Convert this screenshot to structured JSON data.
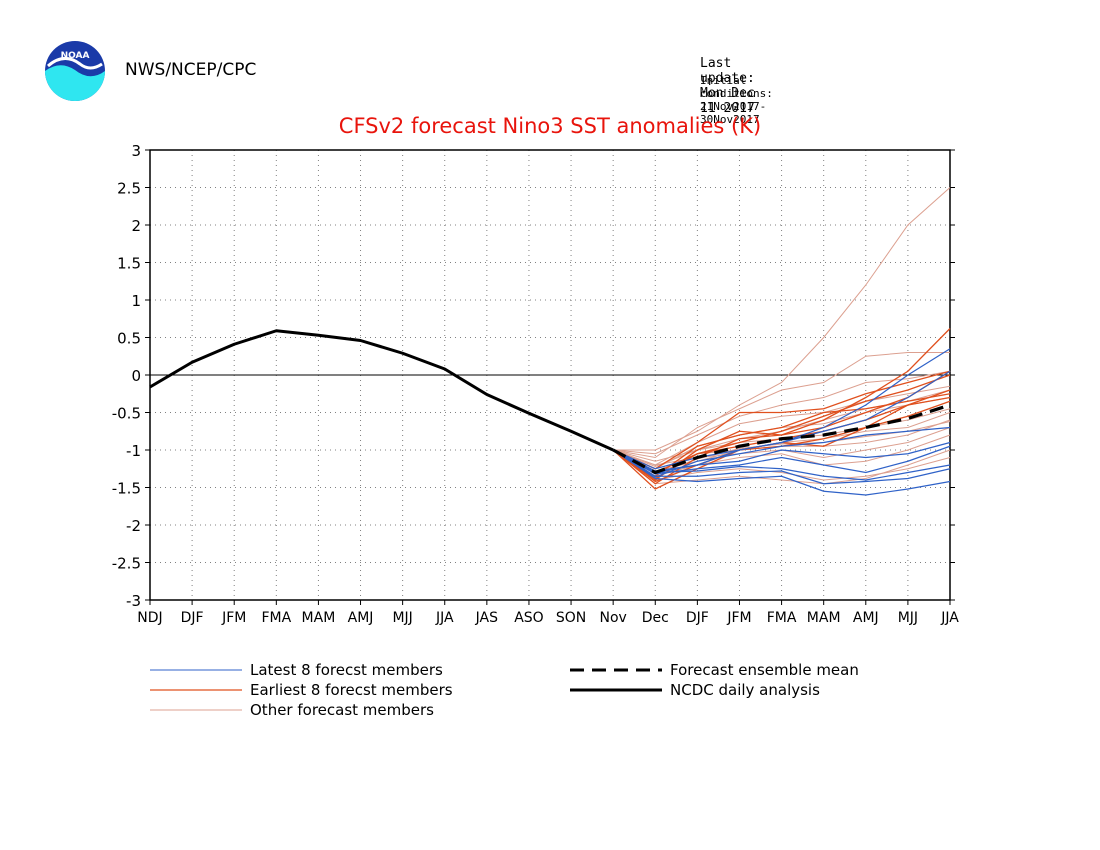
{
  "header": {
    "agency": "NWS/NCEP/CPC",
    "last_update": "Last update: Mon Dec 11 2017",
    "initial_conditions": "Initial conditions: 21Nov2017-30Nov2017",
    "logo_text": "NOAA"
  },
  "colors": {
    "title": "#e8140c",
    "latest": "#2f62c8",
    "earliest": "#e0501e",
    "other": "#dca090",
    "analysis": "#000000",
    "mean": "#000000"
  },
  "chart_data": {
    "type": "line",
    "title": "CFSv2 forecast Nino3 SST anomalies (K)",
    "xlabel": "",
    "ylabel": "",
    "categories": [
      "NDJ",
      "DJF",
      "JFM",
      "FMA",
      "MAM",
      "AMJ",
      "MJJ",
      "JJA",
      "JAS",
      "ASO",
      "SON",
      "Nov",
      "Dec",
      "DJF",
      "JFM",
      "FMA",
      "MAM",
      "AMJ",
      "MJJ",
      "JJA"
    ],
    "ylim": [
      -3,
      3
    ],
    "yticks": [
      -3,
      -2.5,
      -2,
      -1.5,
      -1,
      -0.5,
      0,
      0.5,
      1,
      1.5,
      2,
      2.5,
      3
    ],
    "ytick_labels": [
      "-3",
      "-2.5",
      "-2",
      "-1.5",
      "-1",
      "-0.5",
      "0",
      "0.5",
      "1",
      "1.5",
      "2",
      "2.5",
      "3"
    ],
    "grid": true,
    "zero_line": true,
    "legend": [
      {
        "label": "Latest 8 forecst members",
        "style": "latest"
      },
      {
        "label": "Earliest 8 forecst members",
        "style": "earliest"
      },
      {
        "label": "Other forecast members",
        "style": "other"
      },
      {
        "label": "Forecast ensemble mean",
        "style": "mean"
      },
      {
        "label": "NCDC daily analysis",
        "style": "analysis"
      }
    ],
    "analysis": {
      "name": "NCDC daily analysis",
      "x_start": 0,
      "values": [
        -0.16,
        0.17,
        0.41,
        0.59,
        0.53,
        0.46,
        0.29,
        0.08,
        -0.26,
        -0.51,
        -0.75,
        -1.0
      ]
    },
    "mean": {
      "name": "Forecast ensemble mean",
      "x_start": 11,
      "values": [
        -1.0,
        -1.3,
        -1.1,
        -0.95,
        -0.85,
        -0.8,
        -0.7,
        -0.58,
        -0.4
      ]
    },
    "members_x_start": 11,
    "members": [
      {
        "group": "latest",
        "values": [
          -1.0,
          -1.38,
          -1.42,
          -1.38,
          -1.35,
          -1.55,
          -1.6,
          -1.52,
          -1.42
        ]
      },
      {
        "group": "latest",
        "values": [
          -1.0,
          -1.35,
          -1.35,
          -1.3,
          -1.28,
          -1.45,
          -1.42,
          -1.38,
          -1.25
        ]
      },
      {
        "group": "latest",
        "values": [
          -1.0,
          -1.3,
          -1.28,
          -1.22,
          -1.25,
          -1.35,
          -1.4,
          -1.3,
          -1.2
        ]
      },
      {
        "group": "latest",
        "values": [
          -1.0,
          -1.32,
          -1.25,
          -1.2,
          -1.1,
          -1.2,
          -1.3,
          -1.15,
          -0.95
        ]
      },
      {
        "group": "latest",
        "values": [
          -1.0,
          -1.28,
          -1.2,
          -1.15,
          -1.0,
          -1.05,
          -1.1,
          -1.05,
          -0.9
        ]
      },
      {
        "group": "latest",
        "values": [
          -1.0,
          -1.36,
          -1.15,
          -1.05,
          -0.95,
          -0.9,
          -0.8,
          -0.75,
          -0.7
        ]
      },
      {
        "group": "latest",
        "values": [
          -1.0,
          -1.25,
          -1.1,
          -1.0,
          -0.9,
          -0.75,
          -0.6,
          -0.3,
          0.05
        ]
      },
      {
        "group": "latest",
        "values": [
          -1.0,
          -1.3,
          -1.2,
          -1.0,
          -0.9,
          -0.7,
          -0.4,
          0.0,
          0.35
        ]
      },
      {
        "group": "earliest",
        "values": [
          -1.0,
          -1.52,
          -1.25,
          -1.0,
          -0.9,
          -0.95,
          -0.7,
          -0.4,
          -0.2
        ]
      },
      {
        "group": "earliest",
        "values": [
          -1.0,
          -1.45,
          -1.1,
          -0.85,
          -0.8,
          -0.7,
          -0.5,
          -0.3,
          0.05
        ]
      },
      {
        "group": "earliest",
        "values": [
          -1.0,
          -1.4,
          -1.0,
          -0.75,
          -0.8,
          -0.6,
          -0.3,
          0.05,
          0.62
        ]
      },
      {
        "group": "earliest",
        "values": [
          -1.0,
          -1.35,
          -0.95,
          -0.8,
          -0.7,
          -0.5,
          -0.45,
          -0.35,
          -0.25
        ]
      },
      {
        "group": "earliest",
        "values": [
          -1.0,
          -1.3,
          -1.05,
          -0.9,
          -0.75,
          -0.55,
          -0.35,
          -0.2,
          0.0
        ]
      },
      {
        "group": "earliest",
        "values": [
          -1.0,
          -1.25,
          -0.9,
          -0.5,
          -0.5,
          -0.45,
          -0.25,
          -0.1,
          0.05
        ]
      },
      {
        "group": "earliest",
        "values": [
          -1.0,
          -1.42,
          -1.2,
          -1.0,
          -0.95,
          -0.85,
          -0.7,
          -0.55,
          -0.35
        ]
      },
      {
        "group": "earliest",
        "values": [
          -1.0,
          -1.38,
          -1.05,
          -0.95,
          -0.85,
          -0.75,
          -0.6,
          -0.4,
          -0.3
        ]
      },
      {
        "group": "other",
        "values": [
          -1.0,
          -1.0,
          -0.75,
          -0.4,
          -0.1,
          0.5,
          1.2,
          2.0,
          2.5
        ]
      },
      {
        "group": "other",
        "values": [
          -1.0,
          -1.1,
          -0.7,
          -0.45,
          -0.2,
          -0.1,
          0.25,
          0.3,
          0.3
        ]
      },
      {
        "group": "other",
        "values": [
          -1.0,
          -1.05,
          -0.8,
          -0.55,
          -0.4,
          -0.3,
          -0.1,
          -0.05,
          0.05
        ]
      },
      {
        "group": "other",
        "values": [
          -1.0,
          -1.2,
          -0.9,
          -0.65,
          -0.55,
          -0.5,
          -0.35,
          -0.25,
          -0.15
        ]
      },
      {
        "group": "other",
        "values": [
          -1.0,
          -1.25,
          -0.95,
          -0.8,
          -0.7,
          -0.65,
          -0.5,
          -0.4,
          -0.3
        ]
      },
      {
        "group": "other",
        "values": [
          -1.0,
          -1.15,
          -1.0,
          -0.9,
          -0.85,
          -0.8,
          -0.7,
          -0.6,
          -0.45
        ]
      },
      {
        "group": "other",
        "values": [
          -1.0,
          -1.3,
          -1.05,
          -1.0,
          -0.95,
          -0.95,
          -0.9,
          -0.8,
          -0.6
        ]
      },
      {
        "group": "other",
        "values": [
          -1.0,
          -1.2,
          -1.1,
          -1.05,
          -1.0,
          -1.1,
          -1.0,
          -0.9,
          -0.7
        ]
      },
      {
        "group": "other",
        "values": [
          -1.0,
          -1.35,
          -1.2,
          -1.1,
          -1.05,
          -1.2,
          -1.15,
          -1.0,
          -0.8
        ]
      },
      {
        "group": "other",
        "values": [
          -1.0,
          -1.4,
          -1.3,
          -1.25,
          -1.3,
          -1.4,
          -1.35,
          -1.25,
          -1.1
        ]
      },
      {
        "group": "other",
        "values": [
          -1.0,
          -1.45,
          -1.4,
          -1.35,
          -1.4,
          -1.45,
          -1.38,
          -1.2,
          -1.0
        ]
      },
      {
        "group": "other",
        "values": [
          -1.0,
          -1.28,
          -1.15,
          -1.0,
          -0.9,
          -0.85,
          -0.75,
          -0.7,
          -0.5
        ]
      },
      {
        "group": "other",
        "values": [
          -1.0,
          -1.22,
          -1.0,
          -0.85,
          -0.75,
          -0.6,
          -0.45,
          -0.35,
          -0.2
        ]
      },
      {
        "group": "other",
        "values": [
          -1.0,
          -1.32,
          -1.12,
          -0.98,
          -0.92,
          -0.9,
          -0.82,
          -0.75,
          -0.62
        ]
      }
    ]
  }
}
